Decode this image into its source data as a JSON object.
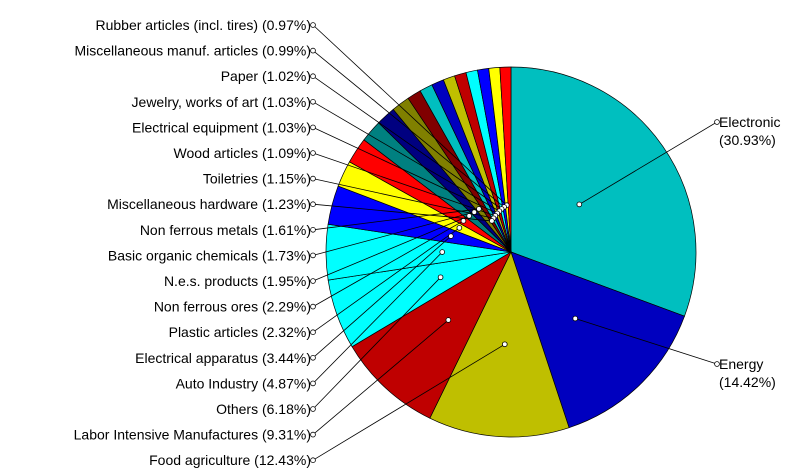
{
  "chart_data": {
    "type": "pie",
    "title": "",
    "start_angle_deg": 0,
    "direction": "clockwise",
    "slices": [
      {
        "label": "Electronic",
        "value": 30.93,
        "display": "Electronic (30.93%)",
        "color": "#00BFBF"
      },
      {
        "label": "Energy",
        "value": 14.42,
        "display": "Energy (14.42%)",
        "color": "#0000BF"
      },
      {
        "label": "Food agriculture",
        "value": 12.43,
        "display": "Food agriculture (12.43%)",
        "color": "#BFBF00"
      },
      {
        "label": "Labor Intensive Manufactures",
        "value": 9.31,
        "display": "Labor Intensive Manufactures (9.31%)",
        "color": "#BF0000"
      },
      {
        "label": "Others",
        "value": 6.18,
        "display": "Others (6.18%)",
        "color": "#00FFFF"
      },
      {
        "label": "Auto Industry",
        "value": 4.87,
        "display": "Auto Industry (4.87%)",
        "color": "#00FFFF"
      },
      {
        "label": "Electrical apparatus",
        "value": 3.44,
        "display": "Electrical apparatus (3.44%)",
        "color": "#0000FF"
      },
      {
        "label": "Plastic articles",
        "value": 2.32,
        "display": "Plastic articles (2.32%)",
        "color": "#FFFF00"
      },
      {
        "label": "Non ferrous ores",
        "value": 2.29,
        "display": "Non ferrous ores (2.29%)",
        "color": "#FF0000"
      },
      {
        "label": "N.e.s. products",
        "value": 1.95,
        "display": "N.e.s. products (1.95%)",
        "color": "#008080"
      },
      {
        "label": "Basic organic chemicals",
        "value": 1.73,
        "display": "Basic organic chemicals (1.73%)",
        "color": "#000080"
      },
      {
        "label": "Non ferrous metals",
        "value": 1.61,
        "display": "Non ferrous metals (1.61%)",
        "color": "#808000"
      },
      {
        "label": "Miscellaneous hardware",
        "value": 1.23,
        "display": "Miscellaneous hardware (1.23%)",
        "color": "#800000"
      },
      {
        "label": "Toiletries",
        "value": 1.15,
        "display": "Toiletries (1.15%)",
        "color": "#00BFBF"
      },
      {
        "label": "Wood articles",
        "value": 1.09,
        "display": "Wood articles (1.09%)",
        "color": "#0000BF"
      },
      {
        "label": "Electrical equipment",
        "value": 1.03,
        "display": "Electrical equipment (1.03%)",
        "color": "#BFBF00"
      },
      {
        "label": "Jewelry, works of art",
        "value": 1.03,
        "display": "Jewelry, works of art (1.03%)",
        "color": "#BF0000"
      },
      {
        "label": "Paper",
        "value": 1.02,
        "display": "Paper (1.02%)",
        "color": "#00FFFF"
      },
      {
        "label": "Miscellaneous manuf. articles",
        "value": 0.99,
        "display": "Miscellaneous manuf. articles (0.99%)",
        "color": "#0000FF"
      },
      {
        "label": "Rubber articles (incl. tires)",
        "value": 0.97,
        "display": "Rubber articles (incl. tires) (0.97%)",
        "color": "#FFFF00"
      },
      {
        "label": "",
        "value": 0.97,
        "display": "",
        "color": "#FF0000"
      }
    ],
    "right_labels": [
      {
        "slice": 0,
        "lines": [
          "Electronic",
          "(30.93%)"
        ]
      },
      {
        "slice": 1,
        "lines": [
          "Energy",
          "(14.42%)"
        ]
      }
    ],
    "left_labels": [
      {
        "slice": 19,
        "text": "Rubber articles (incl. tires) (0.97%)"
      },
      {
        "slice": 18,
        "text": "Miscellaneous manuf. articles (0.99%)"
      },
      {
        "slice": 17,
        "text": "Paper (1.02%)"
      },
      {
        "slice": 16,
        "text": "Jewelry, works of art (1.03%)"
      },
      {
        "slice": 15,
        "text": "Electrical equipment (1.03%)"
      },
      {
        "slice": 14,
        "text": "Wood articles (1.09%)"
      },
      {
        "slice": 13,
        "text": "Toiletries (1.15%)"
      },
      {
        "slice": 12,
        "text": "Miscellaneous hardware (1.23%)"
      },
      {
        "slice": 11,
        "text": "Non ferrous metals (1.61%)"
      },
      {
        "slice": 10,
        "text": "Basic organic chemicals (1.73%)"
      },
      {
        "slice": 9,
        "text": "N.e.s. products (1.95%)"
      },
      {
        "slice": 8,
        "text": "Non ferrous ores (2.29%)"
      },
      {
        "slice": 7,
        "text": "Plastic articles (2.32%)"
      },
      {
        "slice": 6,
        "text": "Electrical apparatus (3.44%)"
      },
      {
        "slice": 5,
        "text": "Auto Industry (4.87%)"
      },
      {
        "slice": 4,
        "text": "Others (6.18%)"
      },
      {
        "slice": 3,
        "text": "Labor Intensive Manufactures (9.31%)"
      },
      {
        "slice": 2,
        "text": "Food agriculture (12.43%)"
      }
    ]
  }
}
